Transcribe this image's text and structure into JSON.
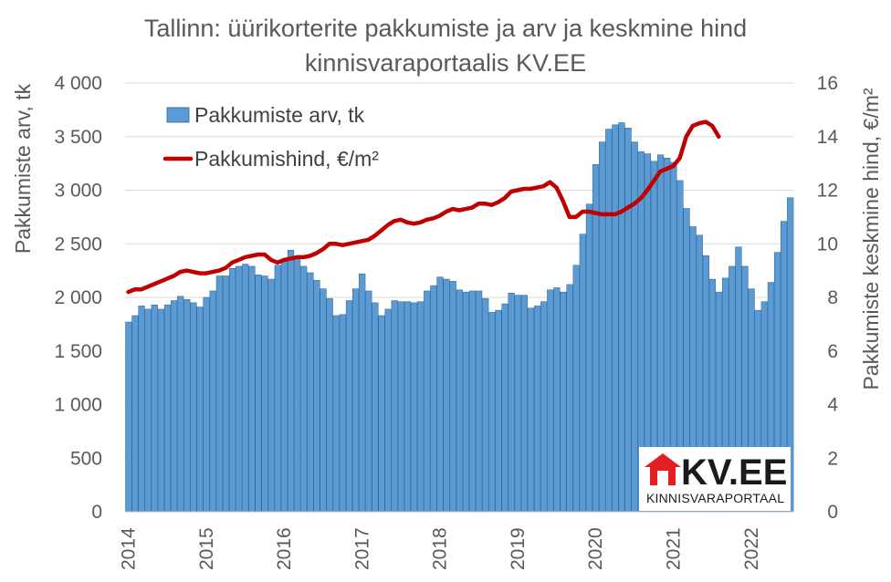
{
  "chart_data": {
    "type": "bar",
    "title_line1": "Tallinn: üürikorterite pakkumiste ja arv ja keskmine hind",
    "title_line2": "kinnisvaraportaalis KV.EE",
    "ylabel_left": "Pakkumiste arv, tk",
    "ylabel_right": "Pakkumiste keskmine hind, €/m²",
    "ylim_left": [
      0,
      4000
    ],
    "ylim_right": [
      0,
      16
    ],
    "y_ticks_left": [
      "0",
      "500",
      "1 000",
      "1 500",
      "2 000",
      "2 500",
      "3 000",
      "3 500",
      "4 000"
    ],
    "y_ticks_right": [
      "0",
      "2",
      "4",
      "6",
      "8",
      "10",
      "12",
      "14",
      "16"
    ],
    "x_ticks": [
      "2014",
      "2015",
      "2016",
      "2017",
      "2018",
      "2019",
      "2020",
      "2021",
      "2022"
    ],
    "legend_placement": "top-left",
    "grid": true,
    "colors": {
      "bars": "#5b9bd5",
      "bar_edge": "#2e5f8a",
      "line": "#c00000",
      "grid": "#d9d9d9"
    },
    "series": [
      {
        "name": "Pakkumiste arv, tk",
        "type": "bar",
        "axis": "left",
        "values": [
          1770,
          1830,
          1920,
          1890,
          1930,
          1890,
          1930,
          1970,
          2010,
          1980,
          1950,
          1910,
          2000,
          2060,
          2200,
          2200,
          2270,
          2290,
          2310,
          2290,
          2210,
          2200,
          2170,
          2300,
          2360,
          2440,
          2380,
          2290,
          2230,
          2160,
          2080,
          1990,
          1830,
          1840,
          1970,
          2080,
          2220,
          2060,
          1950,
          1830,
          1890,
          1970,
          1960,
          1960,
          1950,
          1960,
          2060,
          2110,
          2190,
          2170,
          2150,
          2070,
          2050,
          2060,
          2060,
          1990,
          1860,
          1880,
          1940,
          2040,
          2020,
          2020,
          1900,
          1920,
          1960,
          2070,
          2090,
          2050,
          2120,
          2300,
          2590,
          2870,
          3240,
          3450,
          3570,
          3610,
          3630,
          3580,
          3450,
          3360,
          3340,
          3270,
          3330,
          3300,
          3260,
          3090,
          2830,
          2660,
          2580,
          2390,
          2170,
          2050,
          2180,
          2290,
          2470,
          2290,
          2080,
          1880,
          1960,
          2140,
          2420,
          2710,
          2930
        ]
      },
      {
        "name": "Pakkumishind, €/m²",
        "type": "line",
        "axis": "right",
        "values": [
          8.2,
          8.3,
          8.3,
          8.4,
          8.5,
          8.6,
          8.7,
          8.8,
          8.95,
          9.0,
          8.95,
          8.9,
          8.9,
          8.95,
          9.0,
          9.1,
          9.3,
          9.4,
          9.5,
          9.55,
          9.6,
          9.6,
          9.4,
          9.3,
          9.4,
          9.45,
          9.5,
          9.5,
          9.55,
          9.65,
          9.8,
          10.0,
          10.0,
          9.95,
          10.0,
          10.05,
          10.1,
          10.15,
          10.3,
          10.5,
          10.7,
          10.85,
          10.9,
          10.8,
          10.75,
          10.8,
          10.9,
          10.95,
          11.05,
          11.2,
          11.3,
          11.25,
          11.3,
          11.35,
          11.5,
          11.5,
          11.45,
          11.55,
          11.7,
          11.95,
          12.0,
          12.05,
          12.05,
          12.1,
          12.15,
          12.3,
          12.1,
          11.6,
          11.0,
          11.0,
          11.2,
          11.2,
          11.15,
          11.1,
          11.1,
          11.1,
          11.2,
          11.35,
          11.5,
          11.7,
          12.0,
          12.35,
          12.7,
          12.8,
          12.9,
          13.2,
          14.0,
          14.4,
          14.5,
          14.55,
          14.4,
          14.0
        ]
      }
    ]
  },
  "logo": {
    "main": "KV.EE",
    "sub": "KINNISVARAPORTAAL"
  }
}
